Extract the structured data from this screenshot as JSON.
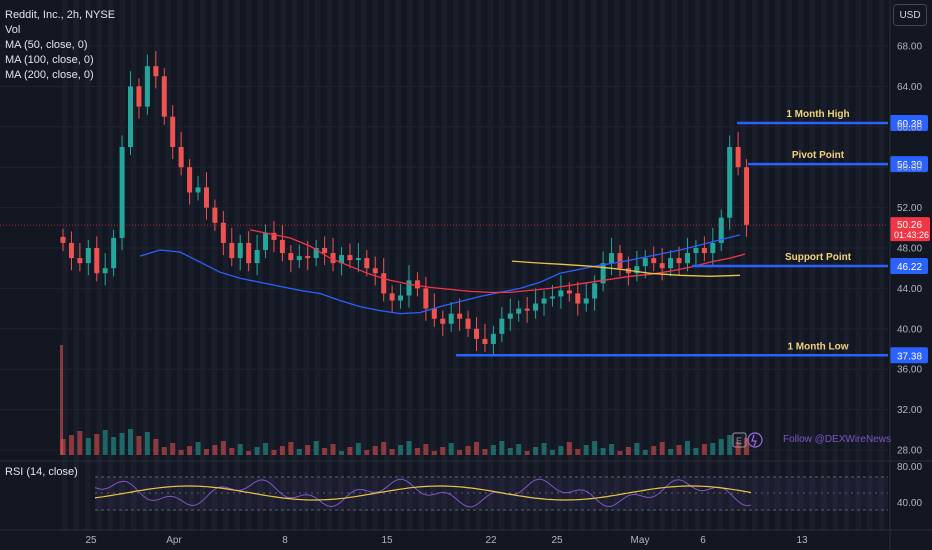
{
  "header": {
    "symbol_line": "Reddit, Inc., 2h, NYSE",
    "indicators": [
      "Vol",
      "MA (50, close, 0)",
      "MA (100, close, 0)",
      "MA (200, close, 0)"
    ],
    "currency_button": "USD"
  },
  "rsi_panel": {
    "label": "RSI (14, close)",
    "ticks": [
      "80.00",
      "40.00"
    ]
  },
  "watermark": "Follow @DEXWireNews",
  "chart_data": {
    "type": "line",
    "x_tick_labels": [
      "25",
      "Apr",
      "8",
      "15",
      "22",
      "25",
      "May",
      "6",
      "13"
    ],
    "y_tick_labels": [
      "68.00",
      "64.00",
      "60.00",
      "56.00",
      "52.00",
      "48.00",
      "44.00",
      "40.00",
      "36.00",
      "32.00",
      "28.00"
    ],
    "ylim": [
      27,
      70
    ],
    "series_close": [
      48.5,
      47.0,
      46.5,
      48.0,
      45.5,
      46.0,
      49.0,
      58.0,
      64.0,
      62.0,
      66.0,
      65.0,
      61.0,
      58.0,
      56.0,
      53.5,
      54.0,
      52.0,
      50.5,
      48.5,
      47.0,
      48.5,
      46.5,
      47.8,
      49.5,
      48.8,
      47.5,
      46.8,
      47.2,
      47.0,
      48.0,
      47.5,
      46.5,
      47.3,
      46.8,
      47.0,
      46.0,
      45.5,
      43.5,
      42.8,
      43.3,
      44.8,
      44.0,
      42.0,
      41.0,
      40.5,
      41.5,
      41.0,
      40.0,
      39.0,
      38.5,
      39.5,
      41.0,
      41.5,
      42.0,
      41.8,
      42.5,
      43.0,
      43.2,
      43.8,
      43.5,
      42.5,
      43.0,
      44.5,
      46.5,
      47.5,
      46.0,
      45.5,
      46.2,
      47.0,
      46.5,
      46.0,
      47.0,
      46.5,
      47.5,
      48.0,
      47.5,
      48.5,
      51.0,
      58.0,
      56.0,
      50.3
    ],
    "ma_50": [
      [
        140,
        47.2
      ],
      [
        160,
        47.8
      ],
      [
        180,
        47.6
      ],
      [
        200,
        46.6
      ],
      [
        220,
        45.6
      ],
      [
        240,
        45.0
      ],
      [
        260,
        44.6
      ],
      [
        280,
        44.2
      ],
      [
        300,
        43.8
      ],
      [
        320,
        43.5
      ],
      [
        340,
        42.8
      ],
      [
        360,
        42.2
      ],
      [
        380,
        41.8
      ],
      [
        400,
        41.5
      ],
      [
        420,
        41.6
      ],
      [
        440,
        42.2
      ],
      [
        460,
        42.7
      ],
      [
        480,
        43.2
      ],
      [
        500,
        43.6
      ],
      [
        520,
        44.0
      ],
      [
        540,
        44.6
      ],
      [
        560,
        45.5
      ],
      [
        580,
        45.9
      ],
      [
        600,
        46.3
      ],
      [
        620,
        46.6
      ],
      [
        640,
        47.0
      ],
      [
        660,
        47.4
      ],
      [
        680,
        47.8
      ],
      [
        700,
        48.3
      ],
      [
        720,
        48.8
      ],
      [
        740,
        49.3
      ]
    ],
    "ma_100": [
      [
        250,
        49.8
      ],
      [
        270,
        49.4
      ],
      [
        290,
        49.0
      ],
      [
        310,
        48.2
      ],
      [
        330,
        47.0
      ],
      [
        350,
        46.2
      ],
      [
        370,
        45.4
      ],
      [
        390,
        44.8
      ],
      [
        410,
        44.4
      ],
      [
        430,
        44.1
      ],
      [
        450,
        43.9
      ],
      [
        470,
        43.7
      ],
      [
        490,
        43.6
      ],
      [
        510,
        43.6
      ],
      [
        530,
        43.8
      ],
      [
        550,
        44.0
      ],
      [
        570,
        44.3
      ],
      [
        590,
        44.6
      ],
      [
        610,
        44.9
      ],
      [
        630,
        45.2
      ],
      [
        650,
        45.4
      ],
      [
        670,
        45.7
      ],
      [
        690,
        46.1
      ],
      [
        710,
        46.6
      ],
      [
        730,
        47.0
      ],
      [
        745,
        47.4
      ]
    ],
    "ma_200": [
      [
        512,
        46.7
      ],
      [
        540,
        46.5
      ],
      [
        560,
        46.4
      ],
      [
        590,
        46.2
      ],
      [
        620,
        45.9
      ],
      [
        650,
        45.5
      ],
      [
        680,
        45.3
      ],
      [
        710,
        45.2
      ],
      [
        740,
        45.3
      ]
    ],
    "current_price": {
      "value": 50.26,
      "label": "50.26",
      "countdown": "01:43:26"
    },
    "levels": [
      {
        "name": "1 Month High",
        "value": 60.38,
        "label": "60.38"
      },
      {
        "name": "Pivot Point",
        "value": 56.3,
        "label": "56.30"
      },
      {
        "name": "Support Point",
        "value": 46.22,
        "label": "46.22"
      },
      {
        "name": "1 Month Low",
        "value": 37.38,
        "label": "37.38"
      }
    ],
    "colors": {
      "up": "#26a69a",
      "down": "#ef5350",
      "ma50": "#2962ff",
      "ma100": "#f23645",
      "ma200": "#e8c547",
      "level": "#2962ff",
      "level_text": "#f0d27a",
      "rsi": "#7e57c2",
      "rsi_ma": "#e8c547"
    }
  }
}
